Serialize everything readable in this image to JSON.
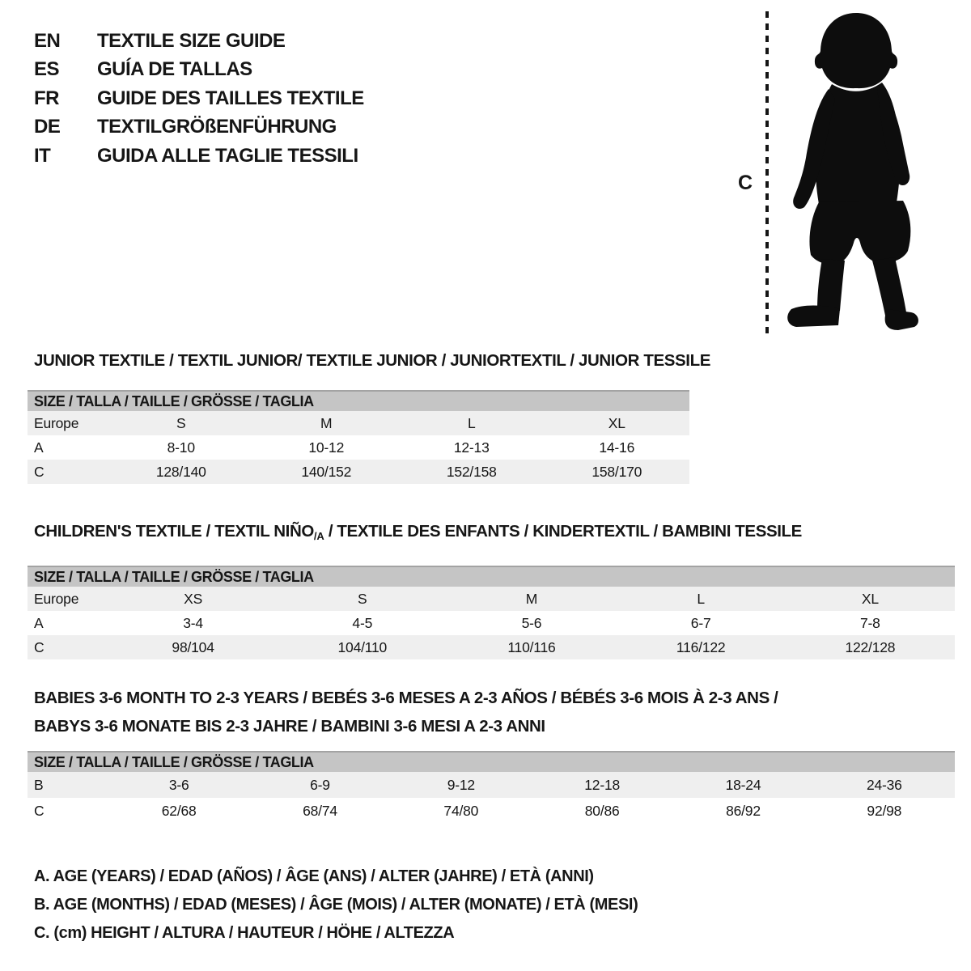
{
  "languages": [
    {
      "code": "EN",
      "title": "TEXTILE SIZE GUIDE"
    },
    {
      "code": "ES",
      "title": "GUÍA DE TALLAS"
    },
    {
      "code": "FR",
      "title": "GUIDE DES TAILLES TEXTILE"
    },
    {
      "code": "DE",
      "title": "TEXTILGRÖßENFÜHRUNG"
    },
    {
      "code": "IT",
      "title": "GUIDA ALLE TAGLIE TESSILI"
    }
  ],
  "figure": {
    "label": "C",
    "icon": "toddler-silhouette-icon"
  },
  "colors": {
    "band": "#c5c5c5",
    "band_border": "#a3a3a3",
    "row_alt": "#efefef",
    "text": "#161616",
    "silhouette": "#0d0d0d"
  },
  "sections": {
    "junior": {
      "heading": "JUNIOR TEXTILE / TEXTIL JUNIOR/ TEXTILE JUNIOR / JUNIORTEXTIL / JUNIOR TESSILE",
      "band": "SIZE / TALLA / TAILLE / GRÖSSE / TAGLIA",
      "rows": [
        [
          "Europe",
          "S",
          "M",
          "L",
          "XL"
        ],
        [
          "A",
          "8-10",
          "10-12",
          "12-13",
          "14-16"
        ],
        [
          "C",
          "128/140",
          "140/152",
          "152/158",
          "158/170"
        ]
      ]
    },
    "children": {
      "heading_prefix": "CHILDREN'S TEXTILE / TEXTIL NIÑO",
      "heading_sub": "/A",
      "heading_suffix": " / TEXTILE DES ENFANTS / KINDERTEXTIL / BAMBINI TESSILE",
      "band": "SIZE / TALLA / TAILLE / GRÖSSE / TAGLIA",
      "rows": [
        [
          "Europe",
          "XS",
          "S",
          "M",
          "L",
          "XL"
        ],
        [
          "A",
          "3-4",
          "4-5",
          "5-6",
          "6-7",
          "7-8"
        ],
        [
          "C",
          "98/104",
          "104/110",
          "110/116",
          "116/122",
          "122/128"
        ]
      ]
    },
    "babies": {
      "heading_line1": "BABIES 3-6 MONTH TO 2-3 YEARS / BEBÉS 3-6 MESES A 2-3 AÑOS / BÉBÉS 3-6 MOIS À 2-3 ANS /",
      "heading_line2": "BABYS 3-6 MONATE BIS 2-3 JAHRE / BAMBINI 3-6 MESI A 2-3 ANNI",
      "band": "SIZE / TALLA / TAILLE / GRÖSSE / TAGLIA",
      "rows": [
        [
          "B",
          "3-6",
          "6-9",
          "9-12",
          "12-18",
          "18-24",
          "24-36"
        ],
        [
          "C",
          "62/68",
          "68/74",
          "74/80",
          "80/86",
          "86/92",
          "92/98"
        ]
      ]
    }
  },
  "legend": [
    "A. AGE (YEARS) / EDAD (AÑOS) / ÂGE (ANS) / ALTER (JAHRE) / ETÀ (ANNI)",
    "B. AGE (MONTHS) / EDAD (MESES) / ÂGE (MOIS) / ALTER (MONATE) / ETÀ (MESI)",
    "C. (cm) HEIGHT / ALTURA / HAUTEUR / HÖHE / ALTEZZA"
  ]
}
